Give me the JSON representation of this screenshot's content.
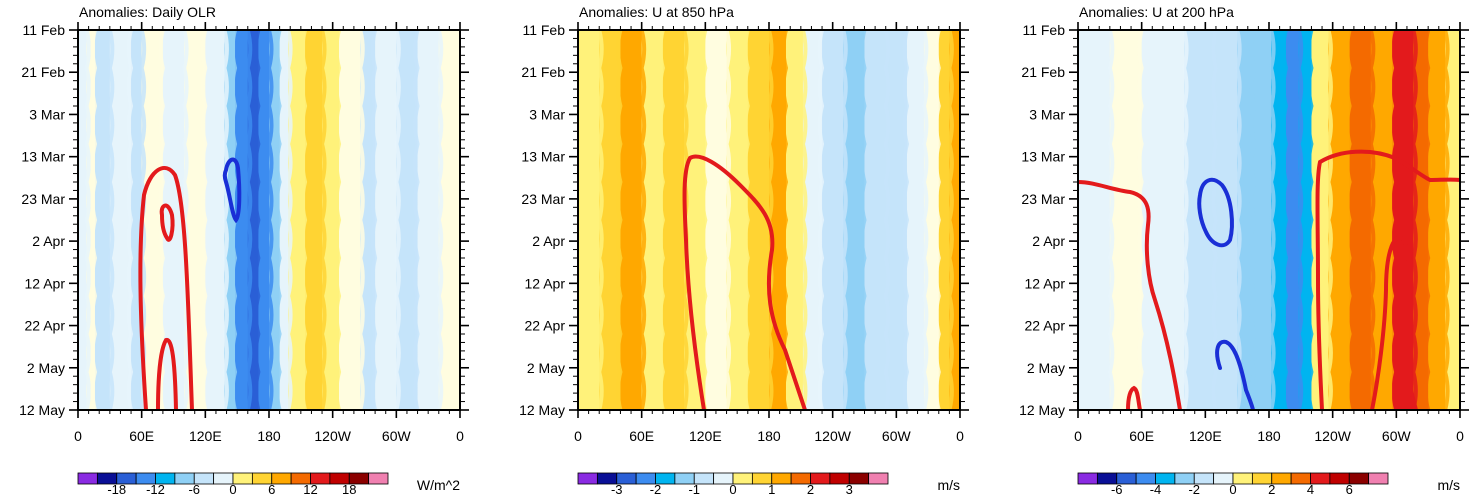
{
  "time_labels": [
    "11 Feb",
    "21 Feb",
    "3 Mar",
    "13 Mar",
    "23 Mar",
    "2 Apr",
    "12 Apr",
    "22 Apr",
    "2 May",
    "12 May"
  ],
  "lon_labels": [
    "0",
    "60E",
    "120E",
    "180",
    "120W",
    "60W",
    "0"
  ],
  "palette": [
    "#8a2be2",
    "#0a0f96",
    "#2a5fd6",
    "#3c8cf0",
    "#00b4f0",
    "#8fd0f5",
    "#c5e4fa",
    "#e6f4fb",
    "#fffde0",
    "#fff27a",
    "#ffd433",
    "#ffa800",
    "#f46a00",
    "#e31a1c",
    "#c00000",
    "#8b0000",
    "#f080b0"
  ],
  "chart_data": [
    {
      "type": "heatmap",
      "title": "Anomalies: Daily OLR",
      "units": "W/m^2",
      "colorbar_ticks": [
        "-18",
        "-12",
        "-6",
        "0",
        "6",
        "12",
        "18"
      ],
      "colorbar_levels": [
        -21,
        -18,
        -15,
        -12,
        -9,
        -6,
        -3,
        0,
        3,
        6,
        9,
        12,
        15,
        18,
        21
      ],
      "x_range": [
        0,
        360
      ],
      "y_range": [
        "11 Feb",
        "12 May"
      ],
      "columns": [
        {
          "lon": 0,
          "class": 7
        },
        {
          "lon": 8,
          "class": 8
        },
        {
          "lon": 16,
          "class": 6
        },
        {
          "lon": 30,
          "class": 7
        },
        {
          "lon": 50,
          "class": 6
        },
        {
          "lon": 60,
          "class": 8
        },
        {
          "lon": 80,
          "class": 7
        },
        {
          "lon": 100,
          "class": 8
        },
        {
          "lon": 120,
          "class": 7
        },
        {
          "lon": 138,
          "class": 5
        },
        {
          "lon": 148,
          "class": 3
        },
        {
          "lon": 160,
          "class": 2
        },
        {
          "lon": 170,
          "class": 3
        },
        {
          "lon": 180,
          "class": 5
        },
        {
          "lon": 190,
          "class": 7
        },
        {
          "lon": 198,
          "class": 9
        },
        {
          "lon": 214,
          "class": 10
        },
        {
          "lon": 230,
          "class": 9
        },
        {
          "lon": 246,
          "class": 8
        },
        {
          "lon": 266,
          "class": 6
        },
        {
          "lon": 280,
          "class": 7
        },
        {
          "lon": 300,
          "class": 6
        },
        {
          "lon": 320,
          "class": 7
        },
        {
          "lon": 340,
          "class": 8
        },
        {
          "lon": 360,
          "class": 8
        }
      ]
    },
    {
      "type": "heatmap",
      "title": "Anomalies: U at 850 hPa",
      "units": "m/s",
      "colorbar_ticks": [
        "-3",
        "-2",
        "-1",
        "0",
        "1",
        "2",
        "3"
      ],
      "colorbar_levels": [
        -3.5,
        -3,
        -2.5,
        -2,
        -1.5,
        -1,
        -0.5,
        0,
        0.5,
        1,
        1.5,
        2,
        2.5,
        3,
        3.5
      ],
      "x_range": [
        0,
        360
      ],
      "y_range": [
        "11 Feb",
        "12 May"
      ],
      "columns": [
        {
          "lon": 0,
          "class": 9
        },
        {
          "lon": 20,
          "class": 10
        },
        {
          "lon": 40,
          "class": 11
        },
        {
          "lon": 60,
          "class": 9
        },
        {
          "lon": 80,
          "class": 10
        },
        {
          "lon": 100,
          "class": 9
        },
        {
          "lon": 120,
          "class": 8
        },
        {
          "lon": 140,
          "class": 9
        },
        {
          "lon": 160,
          "class": 10
        },
        {
          "lon": 180,
          "class": 11
        },
        {
          "lon": 196,
          "class": 9
        },
        {
          "lon": 212,
          "class": 7
        },
        {
          "lon": 230,
          "class": 6
        },
        {
          "lon": 250,
          "class": 5
        },
        {
          "lon": 270,
          "class": 6
        },
        {
          "lon": 290,
          "class": 6
        },
        {
          "lon": 310,
          "class": 7
        },
        {
          "lon": 326,
          "class": 8
        },
        {
          "lon": 340,
          "class": 10
        },
        {
          "lon": 350,
          "class": 11
        },
        {
          "lon": 360,
          "class": 8
        }
      ]
    },
    {
      "type": "heatmap",
      "title": "Anomalies: U at 200 hPa",
      "units": "m/s",
      "colorbar_ticks": [
        "-6",
        "-4",
        "-2",
        "0",
        "2",
        "4",
        "6"
      ],
      "colorbar_levels": [
        -7,
        -6,
        -5,
        -4,
        -3,
        -2,
        -1,
        0,
        1,
        2,
        3,
        4,
        5,
        6,
        7
      ],
      "x_range": [
        0,
        360
      ],
      "y_range": [
        "11 Feb",
        "12 May"
      ],
      "columns": [
        {
          "lon": 0,
          "class": 7
        },
        {
          "lon": 30,
          "class": 8
        },
        {
          "lon": 60,
          "class": 7
        },
        {
          "lon": 100,
          "class": 6
        },
        {
          "lon": 130,
          "class": 6
        },
        {
          "lon": 150,
          "class": 5
        },
        {
          "lon": 166,
          "class": 5
        },
        {
          "lon": 182,
          "class": 4
        },
        {
          "lon": 196,
          "class": 3
        },
        {
          "lon": 208,
          "class": 4
        },
        {
          "lon": 220,
          "class": 9
        },
        {
          "lon": 236,
          "class": 11
        },
        {
          "lon": 256,
          "class": 12
        },
        {
          "lon": 276,
          "class": 11
        },
        {
          "lon": 296,
          "class": 13
        },
        {
          "lon": 316,
          "class": 12
        },
        {
          "lon": 330,
          "class": 11
        },
        {
          "lon": 346,
          "class": 9
        },
        {
          "lon": 360,
          "class": 8
        }
      ]
    }
  ]
}
